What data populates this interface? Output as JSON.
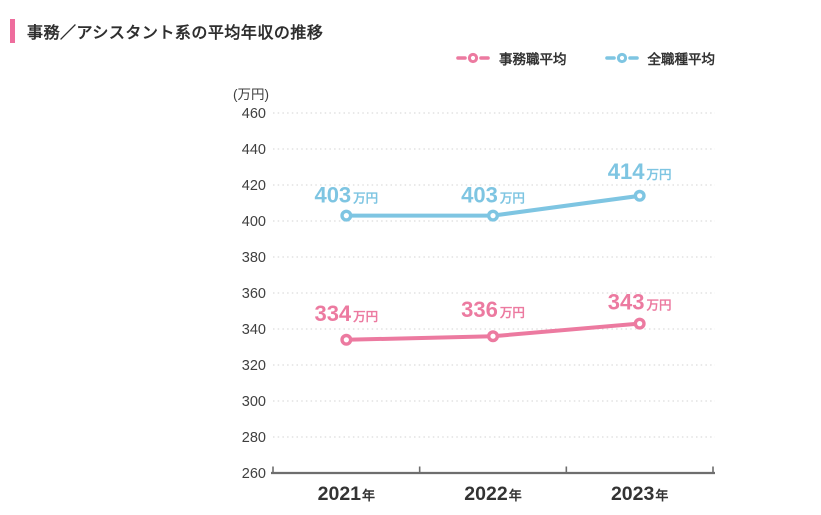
{
  "header": {
    "title": "事務／アシスタント系の平均年収の推移"
  },
  "legend": {
    "items": [
      {
        "label": "事務職平均",
        "color": "#ec7aa0"
      },
      {
        "label": "全職種平均",
        "color": "#7ec5e2"
      }
    ]
  },
  "chart_data": {
    "type": "line",
    "title": "事務／アシスタント系の平均年収の推移",
    "unit_label": "(万円)",
    "categories": [
      "2021年",
      "2022年",
      "2023年"
    ],
    "series": [
      {
        "name": "事務職平均",
        "color": "#ec7aa0",
        "values": [
          334,
          336,
          343
        ]
      },
      {
        "name": "全職種平均",
        "color": "#7ec5e2",
        "values": [
          403,
          403,
          414
        ]
      }
    ],
    "value_suffix": "万円",
    "ylim": [
      260,
      460
    ],
    "ytick_step": 20,
    "yticks": [
      260,
      280,
      300,
      320,
      340,
      360,
      380,
      400,
      420,
      440,
      460
    ],
    "grid": "horizontal-dotted",
    "legend_position": "top-right",
    "marker": "open-circle"
  },
  "colors": {
    "accent_bar": "#ee6d9d",
    "title_text": "#2f2f2f",
    "axis_text": "#3f3f3f",
    "category_text": "#333333",
    "axis_line": "#6e6e6e",
    "grid_line": "#dcdcdc",
    "background": "#ffffff"
  }
}
